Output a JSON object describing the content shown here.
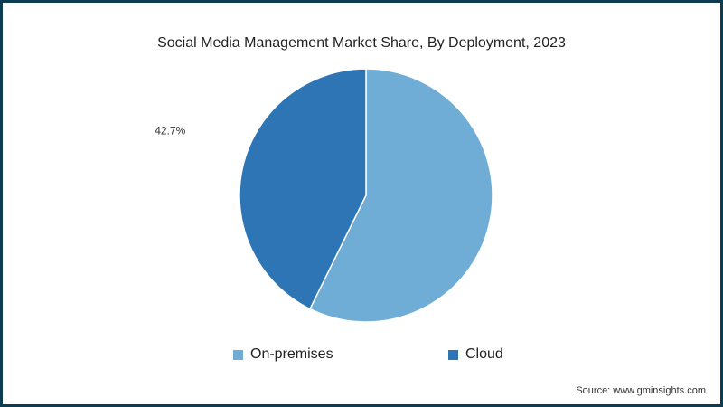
{
  "chart_data": {
    "type": "pie",
    "title": "Social Media Management Market Share, By Deployment, 2023",
    "categories": [
      "On-premises",
      "Cloud"
    ],
    "values": [
      57.3,
      42.7
    ],
    "colors": [
      "#6fadd6",
      "#2e75b6"
    ],
    "data_labels": [
      "",
      "42.7%"
    ],
    "legend": [
      "On-premises",
      "Cloud"
    ]
  },
  "source": "Source: www.gminsights.com"
}
